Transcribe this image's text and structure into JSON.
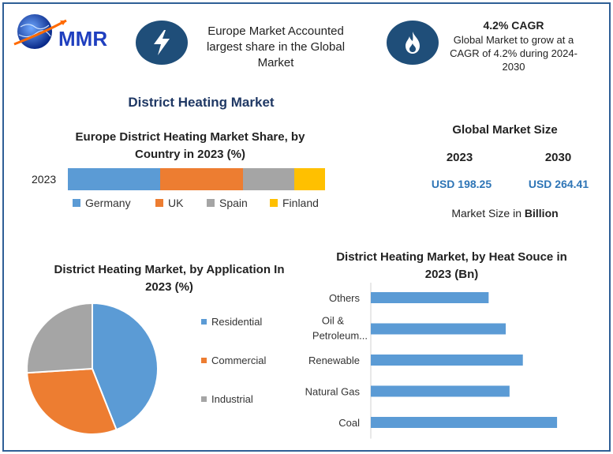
{
  "logo": {
    "text": "MMR"
  },
  "callouts": {
    "left": {
      "text": "Europe Market Accounted largest share in the Global Market",
      "icon": "lightning-bolt-icon"
    },
    "right": {
      "title": "4.2% CAGR",
      "text": "Global Market to grow at a CAGR of 4.2% during 2024-2030",
      "icon": "flame-icon"
    }
  },
  "main_title": "District Heating Market",
  "global_size": {
    "title": "Global Market Size",
    "year_a": "2023",
    "year_b": "2030",
    "value_a": "USD 198.25",
    "value_b": "USD 264.41",
    "unit_prefix": "Market Size in ",
    "unit_bold": "Billion"
  },
  "chart_data": [
    {
      "type": "bar",
      "orientation": "horizontal-stacked",
      "title": "Europe District Heating Market Share, by Country in 2023 (%)",
      "categories": [
        "2023"
      ],
      "series": [
        {
          "name": "Germany",
          "values": [
            36
          ],
          "color": "#5b9bd5"
        },
        {
          "name": "UK",
          "values": [
            32
          ],
          "color": "#ed7d31"
        },
        {
          "name": "Spain",
          "values": [
            20
          ],
          "color": "#a5a5a5"
        },
        {
          "name": "Finland",
          "values": [
            12
          ],
          "color": "#ffc000"
        }
      ],
      "legend": "bottom"
    },
    {
      "type": "pie",
      "title": "District Heating Market, by Application In 2023 (%)",
      "labels": [
        "Residential",
        "Commercial",
        "Industrial"
      ],
      "values": [
        44,
        30,
        26
      ],
      "colors": [
        "#5b9bd5",
        "#ed7d31",
        "#a5a5a5"
      ],
      "legend": "right"
    },
    {
      "type": "bar",
      "orientation": "horizontal",
      "title": "District Heating Market, by Heat Souce in 2023 (Bn)",
      "categories": [
        "Others",
        "Oil & Petroleum...",
        "Renewable",
        "Natural Gas",
        "Coal"
      ],
      "values": [
        31,
        35.5,
        40,
        36.5,
        49
      ],
      "color": "#5b9bd5",
      "xlim": [
        0,
        55
      ]
    }
  ]
}
